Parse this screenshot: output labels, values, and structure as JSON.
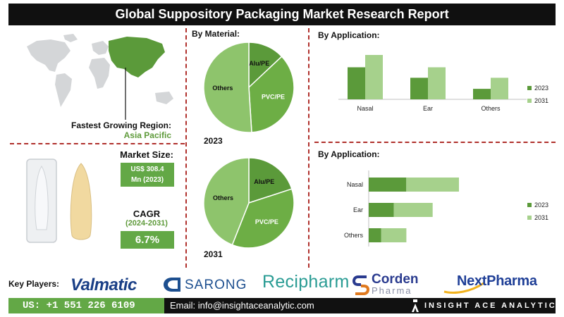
{
  "header": {
    "title": "Global Suppository Packaging Market Research Report"
  },
  "region": {
    "title": "Fastest Growing Region:",
    "value": "Asia Pacific"
  },
  "market_size": {
    "label": "Market Size:",
    "line1": "US$ 308.4",
    "line2": "Mn (2023)"
  },
  "cagr": {
    "label": "CAGR",
    "years": "(2024-2031)",
    "value": "6.7%"
  },
  "material_panel": {
    "title": "By Material:"
  },
  "application_panel": {
    "title": "By Application:"
  },
  "application_panel_2": {
    "title": "By Application:"
  },
  "colors": {
    "dark_green": "#5b9a3a",
    "light_green": "#a6d18c",
    "mid_green": "#6dae45",
    "pale_green": "#8ec46c",
    "header_bg": "#101010",
    "divider": "#b0302c"
  },
  "chart_data": [
    {
      "type": "pie",
      "year_label": "2023",
      "labels": [
        "Alu/PE",
        "PVC/PE",
        "Others"
      ],
      "values": [
        13,
        36,
        51
      ]
    },
    {
      "type": "pie",
      "year_label": "2031",
      "labels": [
        "Alu/PE",
        "PVC/PE",
        "Others"
      ],
      "values": [
        20,
        36,
        44
      ]
    },
    {
      "type": "bar",
      "orientation": "vertical",
      "categories": [
        "Nasal",
        "Ear",
        "Others"
      ],
      "series": [
        {
          "name": "2023",
          "values": [
            52,
            35,
            17
          ]
        },
        {
          "name": "2031",
          "values": [
            72,
            52,
            35
          ]
        }
      ],
      "ylim": [
        0,
        80
      ],
      "legend": "right"
    },
    {
      "type": "bar",
      "orientation": "horizontal",
      "stacked": true,
      "categories": [
        "Nasal",
        "Ear",
        "Others"
      ],
      "series": [
        {
          "name": "2023",
          "values": [
            30,
            20,
            10
          ]
        },
        {
          "name": "2031",
          "values": [
            42,
            31,
            20
          ]
        }
      ],
      "xlim": [
        0,
        90
      ],
      "legend": "right"
    }
  ],
  "key_players": {
    "label": "Key Players:",
    "logos": [
      "Valmatic",
      "SARONG",
      "Recipharm",
      "Corden",
      "Pharma",
      "NextPharma"
    ]
  },
  "contact": {
    "phone": "US: +1 551 226 6109",
    "email": "Email: info@insightaceanalytic.com",
    "brand": "INSIGHT ACE ANALYTIC"
  }
}
